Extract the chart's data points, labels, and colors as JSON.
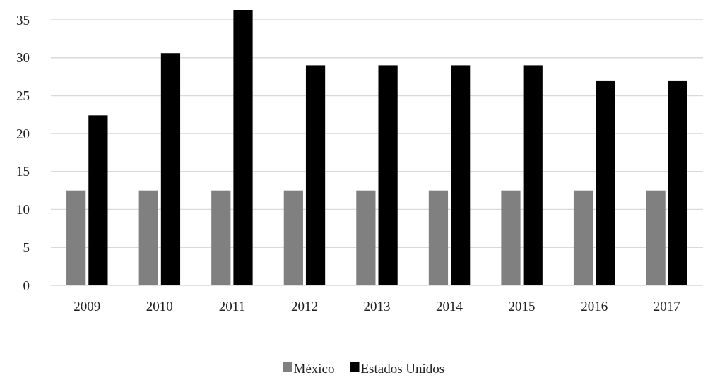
{
  "chart_data": {
    "type": "bar",
    "categories": [
      "2009",
      "2010",
      "2011",
      "2012",
      "2013",
      "2014",
      "2015",
      "2016",
      "2017"
    ],
    "series": [
      {
        "name": "México",
        "color": "#808080",
        "values": [
          12.5,
          12.5,
          12.5,
          12.5,
          12.5,
          12.5,
          12.5,
          12.5,
          12.5
        ]
      },
      {
        "name": "Estados Unidos",
        "color": "#000000",
        "values": [
          22.4,
          30.6,
          36.3,
          29,
          29,
          29,
          29,
          27,
          27
        ]
      }
    ],
    "ylim": [
      0,
      36.3
    ],
    "yticks": [
      0,
      5,
      10,
      15,
      20,
      25,
      30,
      35
    ],
    "grid": "y",
    "legend": "bottom"
  }
}
